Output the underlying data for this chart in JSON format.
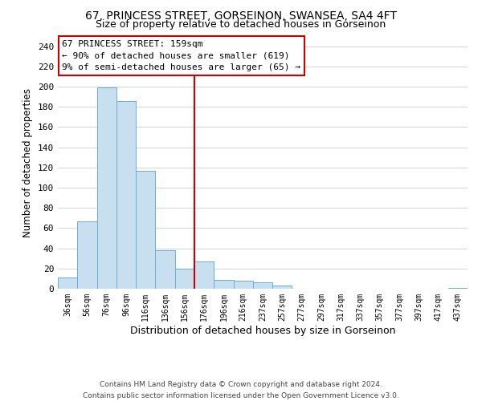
{
  "title_line1": "67, PRINCESS STREET, GORSEINON, SWANSEA, SA4 4FT",
  "title_line2": "Size of property relative to detached houses in Gorseinon",
  "bar_labels": [
    "36sqm",
    "56sqm",
    "76sqm",
    "96sqm",
    "116sqm",
    "136sqm",
    "156sqm",
    "176sqm",
    "196sqm",
    "216sqm",
    "237sqm",
    "257sqm",
    "277sqm",
    "297sqm",
    "317sqm",
    "337sqm",
    "357sqm",
    "377sqm",
    "397sqm",
    "417sqm",
    "437sqm"
  ],
  "bar_heights": [
    11,
    67,
    199,
    186,
    117,
    38,
    20,
    27,
    9,
    8,
    6,
    3,
    0,
    0,
    0,
    0,
    0,
    0,
    0,
    0,
    1
  ],
  "bar_color": "#c8dff0",
  "bar_edge_color": "#6aafd6",
  "grid_color": "#d8d8d8",
  "vline_x": 6.5,
  "vline_color": "#cc0000",
  "xlabel": "Distribution of detached houses by size in Gorseinon",
  "ylabel": "Number of detached properties",
  "ylim": [
    0,
    250
  ],
  "yticks": [
    0,
    20,
    40,
    60,
    80,
    100,
    120,
    140,
    160,
    180,
    200,
    220,
    240
  ],
  "annotation_title": "67 PRINCESS STREET: 159sqm",
  "annotation_line1": "← 90% of detached houses are smaller (619)",
  "annotation_line2": "9% of semi-detached houses are larger (65) →",
  "annotation_box_color": "#ffffff",
  "annotation_box_edge_color": "#cc0000",
  "footer_line1": "Contains HM Land Registry data © Crown copyright and database right 2024.",
  "footer_line2": "Contains public sector information licensed under the Open Government Licence v3.0.",
  "background_color": "#ffffff"
}
